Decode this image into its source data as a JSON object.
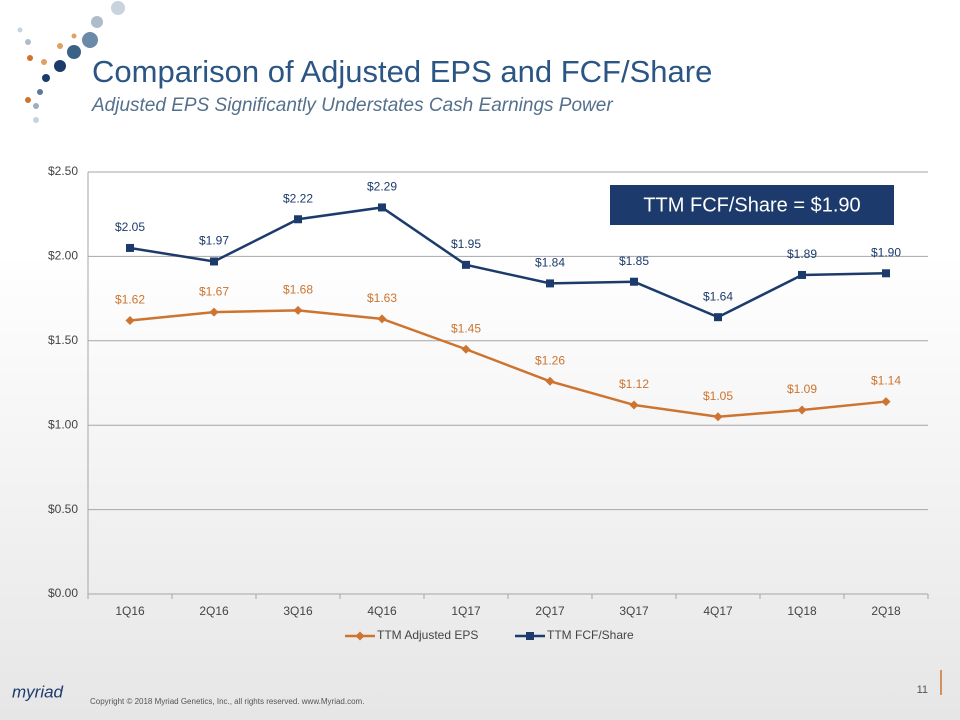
{
  "chart_data": {
    "type": "line",
    "title": "Comparison of Adjusted EPS and FCF/Share",
    "subtitle": "Adjusted EPS Significantly Understates Cash Earnings Power",
    "annotation": "TTM FCF/Share = $1.90",
    "categories": [
      "1Q16",
      "2Q16",
      "3Q16",
      "4Q16",
      "1Q17",
      "2Q17",
      "3Q17",
      "4Q17",
      "1Q18",
      "2Q18"
    ],
    "series": [
      {
        "name": "TTM Adjusted EPS",
        "color": "#cc7430",
        "marker": "diamond",
        "values": [
          1.62,
          1.67,
          1.68,
          1.63,
          1.45,
          1.26,
          1.12,
          1.05,
          1.09,
          1.14
        ],
        "value_labels": [
          "$1.62",
          "$1.67",
          "$1.68",
          "$1.63",
          "$1.45",
          "$1.26",
          "$1.12",
          "$1.05",
          "$1.09",
          "$1.14"
        ]
      },
      {
        "name": "TTM FCF/Share",
        "color": "#1c3b6c",
        "marker": "square",
        "values": [
          2.05,
          1.97,
          2.22,
          2.29,
          1.95,
          1.84,
          1.85,
          1.64,
          1.89,
          1.9
        ],
        "value_labels": [
          "$2.05",
          "$1.97",
          "$2.22",
          "$2.29",
          "$1.95",
          "$1.84",
          "$1.85",
          "$1.64",
          "$1.89",
          "$1.90"
        ]
      }
    ],
    "ylim": [
      0,
      2.5
    ],
    "yticks": [
      {
        "value": 0,
        "label": "$0.00"
      },
      {
        "value": 0.5,
        "label": "$0.50"
      },
      {
        "value": 1,
        "label": "$1.00"
      },
      {
        "value": 1.5,
        "label": "$1.50"
      },
      {
        "value": 2,
        "label": "$2.00"
      },
      {
        "value": 2.5,
        "label": "$2.50"
      }
    ],
    "grid": true,
    "legend": "bottom"
  },
  "footer": "Copyright © 2018  Myriad Genetics, Inc., all rights reserved.  www.Myriad.com.",
  "page_number": "11",
  "logo": "myriad"
}
